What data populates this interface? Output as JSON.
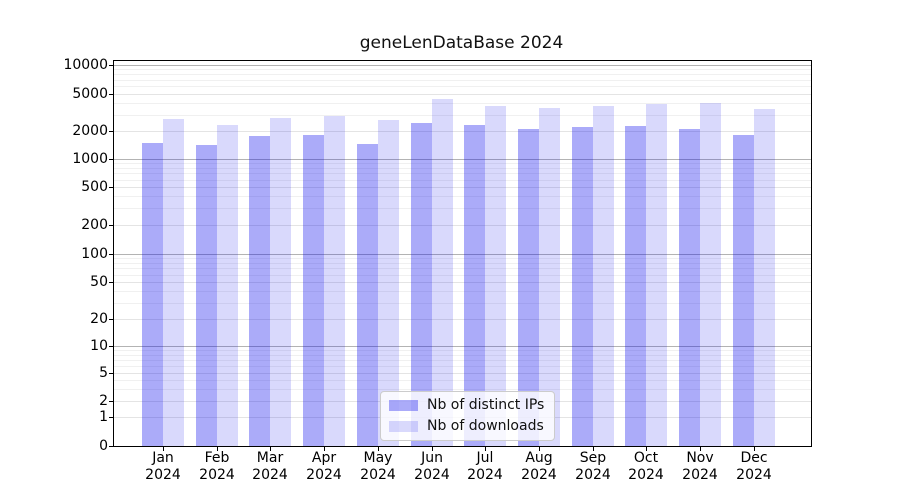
{
  "title": "geneLenDataBase 2024",
  "chart_data": {
    "type": "bar",
    "title": "geneLenDataBase 2024",
    "categories": [
      "Jan",
      "Feb",
      "Mar",
      "Apr",
      "May",
      "Jun",
      "Jul",
      "Aug",
      "Sep",
      "Oct",
      "Nov",
      "Dec"
    ],
    "category_year": "2024",
    "series": [
      {
        "name": "Nb of distinct IPs",
        "color": "rgba(0,0,238,0.33)",
        "values": [
          1470,
          1430,
          1760,
          1790,
          1440,
          2450,
          2310,
          2110,
          2200,
          2250,
          2080,
          1800
        ]
      },
      {
        "name": "Nb of downloads",
        "color": "rgba(0,0,238,0.15)",
        "values": [
          2690,
          2330,
          2750,
          2890,
          2620,
          4430,
          3760,
          3550,
          3690,
          3940,
          4030,
          3440
        ]
      }
    ],
    "yscale": "symlog",
    "ylim": [
      0,
      10000
    ],
    "yticks": [
      10000,
      5000,
      2000,
      1000,
      500,
      200,
      100,
      50,
      20,
      10,
      5,
      2,
      1,
      0
    ],
    "major_yticks": [
      10000,
      1000,
      100,
      10
    ],
    "xlabel": "",
    "ylabel": "",
    "grid": true,
    "legend_position": "lower center",
    "colors": {
      "bar_distinct_ips": "#abaaf9",
      "bar_downloads": "#d9d9fb",
      "grid_major": "#b3b3b3",
      "grid_minor": "#f0f0f0",
      "spine": "#000000",
      "background": "#ffffff"
    }
  }
}
